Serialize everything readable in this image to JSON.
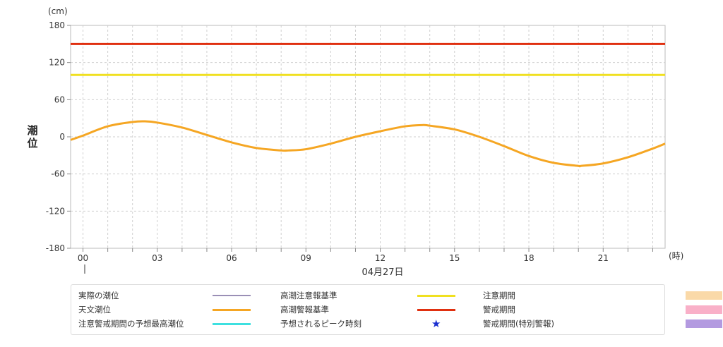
{
  "chart_data": {
    "type": "line",
    "unit_label": "(cm)",
    "ylabel": "潮位",
    "x_unit_label": "(時)",
    "date_label": "04月27日",
    "ylim": [
      -180,
      180
    ],
    "yticks": [
      "180",
      "120",
      "60",
      "0",
      "-60",
      "-120",
      "-180"
    ],
    "ytick_values": [
      180,
      120,
      60,
      0,
      -60,
      -120,
      -180
    ],
    "xlim": [
      -0.5,
      23.5
    ],
    "xticks": [
      "00",
      "03",
      "06",
      "09",
      "12",
      "15",
      "18",
      "21"
    ],
    "xtick_values": [
      0,
      3,
      6,
      9,
      12,
      15,
      18,
      21
    ],
    "grid": true,
    "series": [
      {
        "name": "天文潮位",
        "color": "#f5a623",
        "x": [
          -0.5,
          0,
          1,
          2,
          2.5,
          3,
          4,
          5,
          6,
          7,
          8,
          8.3,
          9,
          10,
          11,
          12,
          13,
          13.7,
          14,
          15,
          16,
          17,
          18,
          19,
          20,
          20.1,
          21,
          22,
          23,
          23.5
        ],
        "y": [
          -5,
          2,
          17,
          24,
          25,
          23,
          15,
          3,
          -9,
          -18,
          -22,
          -22,
          -20,
          -11,
          0,
          9,
          17,
          19,
          18,
          12,
          0,
          -15,
          -31,
          -42,
          -47,
          -47,
          -43,
          -33,
          -19,
          -11
        ]
      },
      {
        "name": "高潮注意報基準",
        "color": "#f0e020",
        "value": 100
      },
      {
        "name": "高潮警報基準",
        "color": "#e03010",
        "value": 150
      }
    ]
  },
  "legend": {
    "items": [
      {
        "label": "実際の潮位",
        "color": "#9a8fb6",
        "kind": "line"
      },
      {
        "label": "天文潮位",
        "color": "#f5a623",
        "kind": "line"
      },
      {
        "label": "注意警戒期間の予想最高潮位",
        "color": "#3ee0e0",
        "kind": "line"
      },
      {
        "label": "高潮注意報基準",
        "color": "#f0e020",
        "kind": "line"
      },
      {
        "label": "高潮警報基準",
        "color": "#e03010",
        "kind": "line"
      },
      {
        "label": "予想されるピーク時刻",
        "color": "#1a2fd0",
        "kind": "star",
        "symbol": "★"
      },
      {
        "label": "注意期間",
        "color": "#fad9a8",
        "kind": "box"
      },
      {
        "label": "警戒期間",
        "color": "#f9b0c8",
        "kind": "box"
      },
      {
        "label": "警戒期間(特別警報)",
        "color": "#b39ae0",
        "kind": "box"
      }
    ]
  }
}
